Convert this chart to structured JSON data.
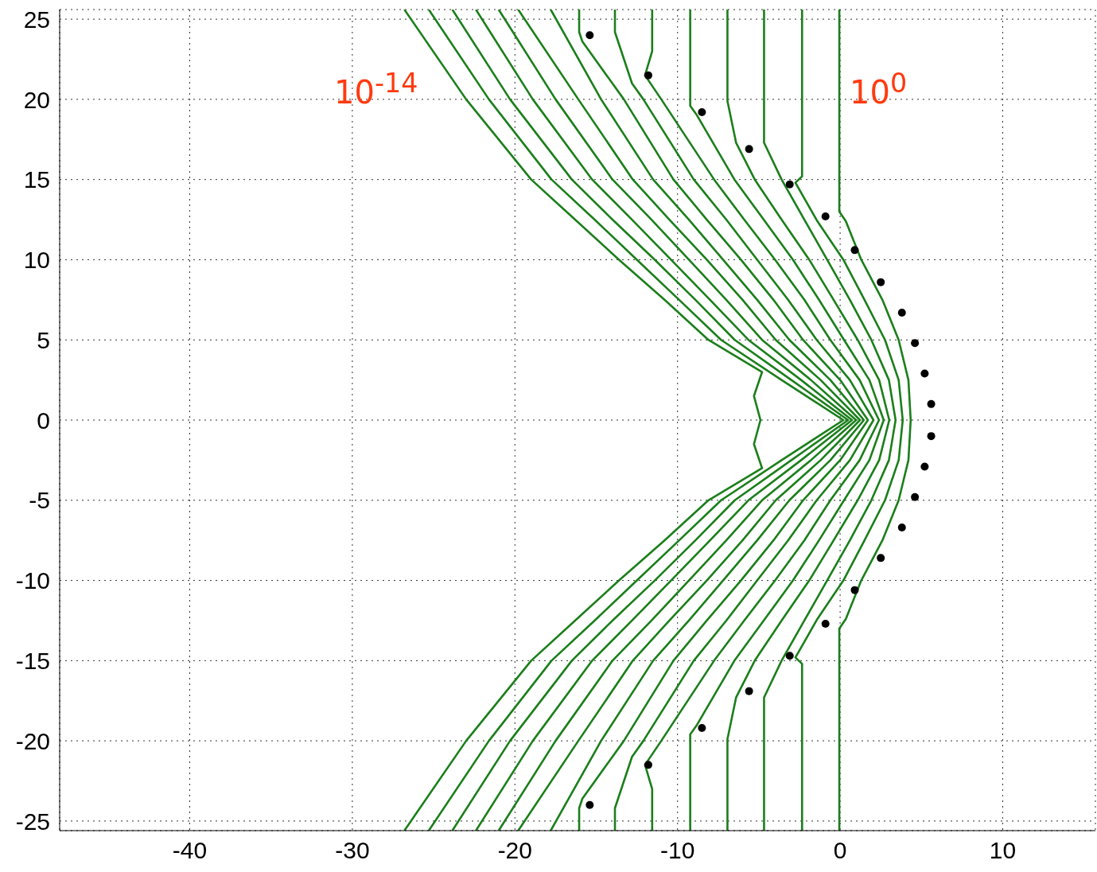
{
  "chart_data": {
    "type": "line",
    "xlim": [
      -48,
      15.7
    ],
    "ylim": [
      -25.6,
      25.6
    ],
    "xticks": [
      -40,
      -30,
      -20,
      -10,
      0,
      10
    ],
    "yticks": [
      -25,
      -20,
      -15,
      -10,
      -5,
      0,
      5,
      10,
      15,
      20,
      25
    ],
    "grid": true,
    "annotations": [
      "10$^{-14}$",
      "10$^{0}$"
    ],
    "series": [
      {
        "color": "#1b7f1b",
        "x": [
          -0.05,
          -0.05,
          0.35,
          1.3,
          2.6,
          3.6,
          4.2,
          4.34,
          4.2,
          3.6,
          2.6,
          1.3,
          0.35,
          -0.05,
          -0.05
        ],
        "values": [
          25.6,
          13,
          12.4,
          10,
          7.5,
          5,
          2.5,
          0,
          -2.5,
          -5,
          -7.5,
          -10,
          -12.4,
          -13,
          -25.6
        ]
      },
      {
        "color": "#1b7f1b",
        "x": [
          -2.34,
          -2.34,
          -2.75,
          -1.4,
          0.2,
          1.5,
          2.76,
          3.6,
          3.85,
          3.6,
          2.76,
          1.5,
          0.2,
          -1.4,
          -2.75,
          -2.34,
          -2.34
        ],
        "values": [
          25.6,
          15.2,
          14.8,
          12.4,
          10,
          7.5,
          5,
          2.5,
          0,
          -2.5,
          -5,
          -7.5,
          -10,
          -12.4,
          -14.8,
          -15.2,
          -25.6
        ]
      },
      {
        "color": "#1b7f1b",
        "x": [
          -4.68,
          -4.68,
          -3.6,
          -2.2,
          -0.8,
          0.6,
          1.92,
          3.0,
          3.41,
          3.0,
          1.92,
          0.6,
          -0.8,
          -2.2,
          -3.6,
          -4.68,
          -4.68
        ],
        "values": [
          25.6,
          17.3,
          15,
          12.5,
          10,
          7.5,
          5,
          2.5,
          0,
          -2.5,
          -5,
          -7.5,
          -10,
          -12.5,
          -15,
          -17.3,
          -25.6
        ]
      },
      {
        "color": "#1b7f1b",
        "x": [
          -6.93,
          -6.93,
          -6.4,
          -5.25,
          -3.6,
          -1.9,
          -0.4,
          1.08,
          2.4,
          3.02,
          2.4,
          1.08,
          -0.4,
          -1.9,
          -3.6,
          -5.25,
          -6.4,
          -6.93,
          -6.93
        ],
        "values": [
          25.6,
          19.9,
          17.3,
          15,
          12.5,
          10,
          7.5,
          5,
          2.5,
          0,
          -2.5,
          -5,
          -7.5,
          -10,
          -12.5,
          -15,
          -17.3,
          -19.9,
          -25.6
        ]
      },
      {
        "color": "#1b7f1b",
        "x": [
          -9.22,
          -9.22,
          -8.8,
          -6.5,
          -4.7,
          -2.9,
          -1.3,
          0.24,
          1.8,
          2.68,
          1.8,
          0.24,
          -1.3,
          -2.9,
          -4.7,
          -6.5,
          -8.8,
          -9.22,
          -9.22
        ],
        "values": [
          25.6,
          19.6,
          19,
          15,
          12.5,
          10,
          7.5,
          5,
          2.5,
          0,
          -2.5,
          -5,
          -7.5,
          -10,
          -12.5,
          -15,
          -19,
          -19.6,
          -25.6
        ]
      },
      {
        "color": "#1b7f1b",
        "x": [
          -11.56,
          -11.56,
          -12,
          -11,
          -7.75,
          -5.9,
          -4.0,
          -2.2,
          -0.6,
          1.2,
          2.39,
          1.2,
          -0.6,
          -2.2,
          -4.0,
          -5.9,
          -7.75,
          -11,
          -12,
          -11.56,
          -11.56
        ],
        "values": [
          25.6,
          23,
          21.5,
          20,
          15,
          12.5,
          10,
          7.5,
          5,
          2.5,
          0,
          -2.5,
          -5,
          -7.5,
          -10,
          -12.5,
          -15,
          -20,
          -21.5,
          -23,
          -25.6
        ]
      },
      {
        "color": "#1b7f1b",
        "x": [
          -13.85,
          -13.85,
          -12.8,
          -12.1,
          -9,
          -7.0,
          -5.1,
          -3.2,
          -1.44,
          0.6,
          2.05,
          0.6,
          -1.44,
          -3.2,
          -5.1,
          -7.0,
          -9,
          -12.1,
          -12.8,
          -13.85,
          -13.85
        ],
        "values": [
          25.6,
          24.2,
          21,
          20,
          15,
          12.5,
          10,
          7.5,
          5,
          2.5,
          0,
          -2.5,
          -5,
          -7.5,
          -10,
          -12.5,
          -15,
          -20,
          -21,
          -24.2,
          -25.6
        ]
      },
      {
        "color": "#1b7f1b",
        "x": [
          -16.05,
          -16.05,
          -15.85,
          -13.3,
          -10.25,
          -8.2,
          -6.1,
          -4.1,
          -2.28,
          0,
          1.71,
          0,
          -2.28,
          -4.1,
          -6.1,
          -8.2,
          -10.25,
          -13.3,
          -15.85,
          -16.05,
          -16.05
        ],
        "values": [
          25.6,
          24.2,
          23.6,
          20,
          15,
          12.5,
          10,
          7.5,
          5,
          2.5,
          0,
          -2.5,
          -5,
          -7.5,
          -10,
          -12.5,
          -15,
          -20,
          -23.6,
          -24.2,
          -25.6
        ]
      },
      {
        "color": "#1b7f1b",
        "x": [
          -17.8,
          -14.7,
          -11.5,
          -9.3,
          -7.2,
          -5.1,
          -3.12,
          -0.6,
          1.46,
          -0.6,
          -3.12,
          -5.1,
          -7.2,
          -9.3,
          -11.5,
          -14.7,
          -17.8
        ],
        "values": [
          25.6,
          20,
          15,
          12.5,
          10,
          7.5,
          5,
          2.5,
          0,
          -2.5,
          -5,
          -7.5,
          -10,
          -12.5,
          -15,
          -20,
          -25.6
        ]
      },
      {
        "color": "#1b7f1b",
        "x": [
          -19.8,
          -16.1,
          -12.75,
          -10.5,
          -8.2,
          -6.0,
          -3.96,
          -1.2,
          1.22,
          -1.2,
          -3.96,
          -6.0,
          -8.2,
          -10.5,
          -12.75,
          -16.1,
          -19.8
        ],
        "values": [
          25.6,
          20,
          15,
          12.5,
          10,
          7.5,
          5,
          2.5,
          0,
          -2.5,
          -5,
          -7.5,
          -10,
          -12.5,
          -15,
          -20,
          -25.6
        ]
      },
      {
        "color": "#1b7f1b",
        "x": [
          -21,
          -17.5,
          -14,
          -11.6,
          -9.3,
          -7.0,
          -4.8,
          -1.8,
          0.98,
          -1.8,
          -4.8,
          -7.0,
          -9.3,
          -11.6,
          -14,
          -17.5,
          -21
        ],
        "values": [
          25.6,
          20,
          15,
          12.5,
          10,
          7.5,
          5,
          2.5,
          0,
          -2.5,
          -5,
          -7.5,
          -10,
          -12.5,
          -15,
          -20,
          -25.6
        ]
      },
      {
        "color": "#1b7f1b",
        "x": [
          -22.4,
          -18.9,
          -15.25,
          -12.8,
          -10.4,
          -8.0,
          -5.64,
          -2.4,
          0.73,
          -2.4,
          -5.64,
          -8.0,
          -10.4,
          -12.8,
          -15.25,
          -18.9,
          -22.4
        ],
        "values": [
          25.6,
          20,
          15,
          12.5,
          10,
          7.5,
          5,
          2.5,
          0,
          -2.5,
          -5,
          -7.5,
          -10,
          -12.5,
          -15,
          -20,
          -25.6
        ]
      },
      {
        "color": "#1b7f1b",
        "x": [
          -23.85,
          -20.3,
          -16.5,
          -14,
          -11.4,
          -8.9,
          -6.48,
          -3.0,
          0.49,
          -3.0,
          -6.48,
          -8.9,
          -11.4,
          -14,
          -16.5,
          -20.3,
          -23.85
        ],
        "values": [
          25.6,
          20,
          15,
          12.5,
          10,
          7.5,
          5,
          2.5,
          0,
          -2.5,
          -5,
          -7.5,
          -10,
          -12.5,
          -15,
          -20,
          -25.6
        ]
      },
      {
        "color": "#1b7f1b",
        "x": [
          -25.3,
          -21.6,
          -17.75,
          -15.1,
          -12.5,
          -9.9,
          -7.32,
          -3.6,
          0.2,
          -3.6,
          -7.32,
          -9.9,
          -12.5,
          -15.1,
          -17.75,
          -21.6,
          -25.3
        ],
        "values": [
          25.6,
          20,
          15,
          12.5,
          10,
          7.5,
          5,
          2.5,
          0,
          -2.5,
          -5,
          -7.5,
          -10,
          -12.5,
          -15,
          -20,
          -25.6
        ]
      },
      {
        "color": "#1b7f1b",
        "x": [
          -26.8,
          -23,
          -19,
          -16.3,
          -13.6,
          -10.8,
          -8.1,
          -4.8,
          -5.3,
          -4.9,
          -5.3,
          -4.8,
          -8.1,
          -10.8,
          -13.6,
          -16.3,
          -19,
          -23,
          -26.8
        ],
        "values": [
          25.6,
          20,
          15,
          12.5,
          10,
          7.5,
          5,
          3,
          1.5,
          0,
          -1.5,
          -3,
          -5,
          -7.5,
          -10,
          -12.5,
          -15,
          -20,
          -25.6
        ]
      },
      {
        "type": "scatter",
        "marker": "circle",
        "color": "#000000",
        "x": [
          -15.4,
          -11.8,
          -8.5,
          -5.6,
          -3.1,
          -0.9,
          0.9,
          2.5,
          3.8,
          4.6,
          5.2,
          5.6,
          5.6,
          5.2,
          4.6,
          3.8,
          2.5,
          0.9,
          -0.9,
          -3.1,
          -5.6,
          -8.5,
          -11.8,
          -15.4
        ],
        "values": [
          24,
          21.5,
          19.2,
          16.9,
          14.7,
          12.7,
          10.6,
          8.6,
          6.7,
          4.8,
          2.9,
          1.0,
          -1.0,
          -2.9,
          -4.8,
          -6.7,
          -8.6,
          -10.6,
          -12.7,
          -14.7,
          -16.9,
          -19.2,
          -21.5,
          -24
        ]
      }
    ]
  }
}
